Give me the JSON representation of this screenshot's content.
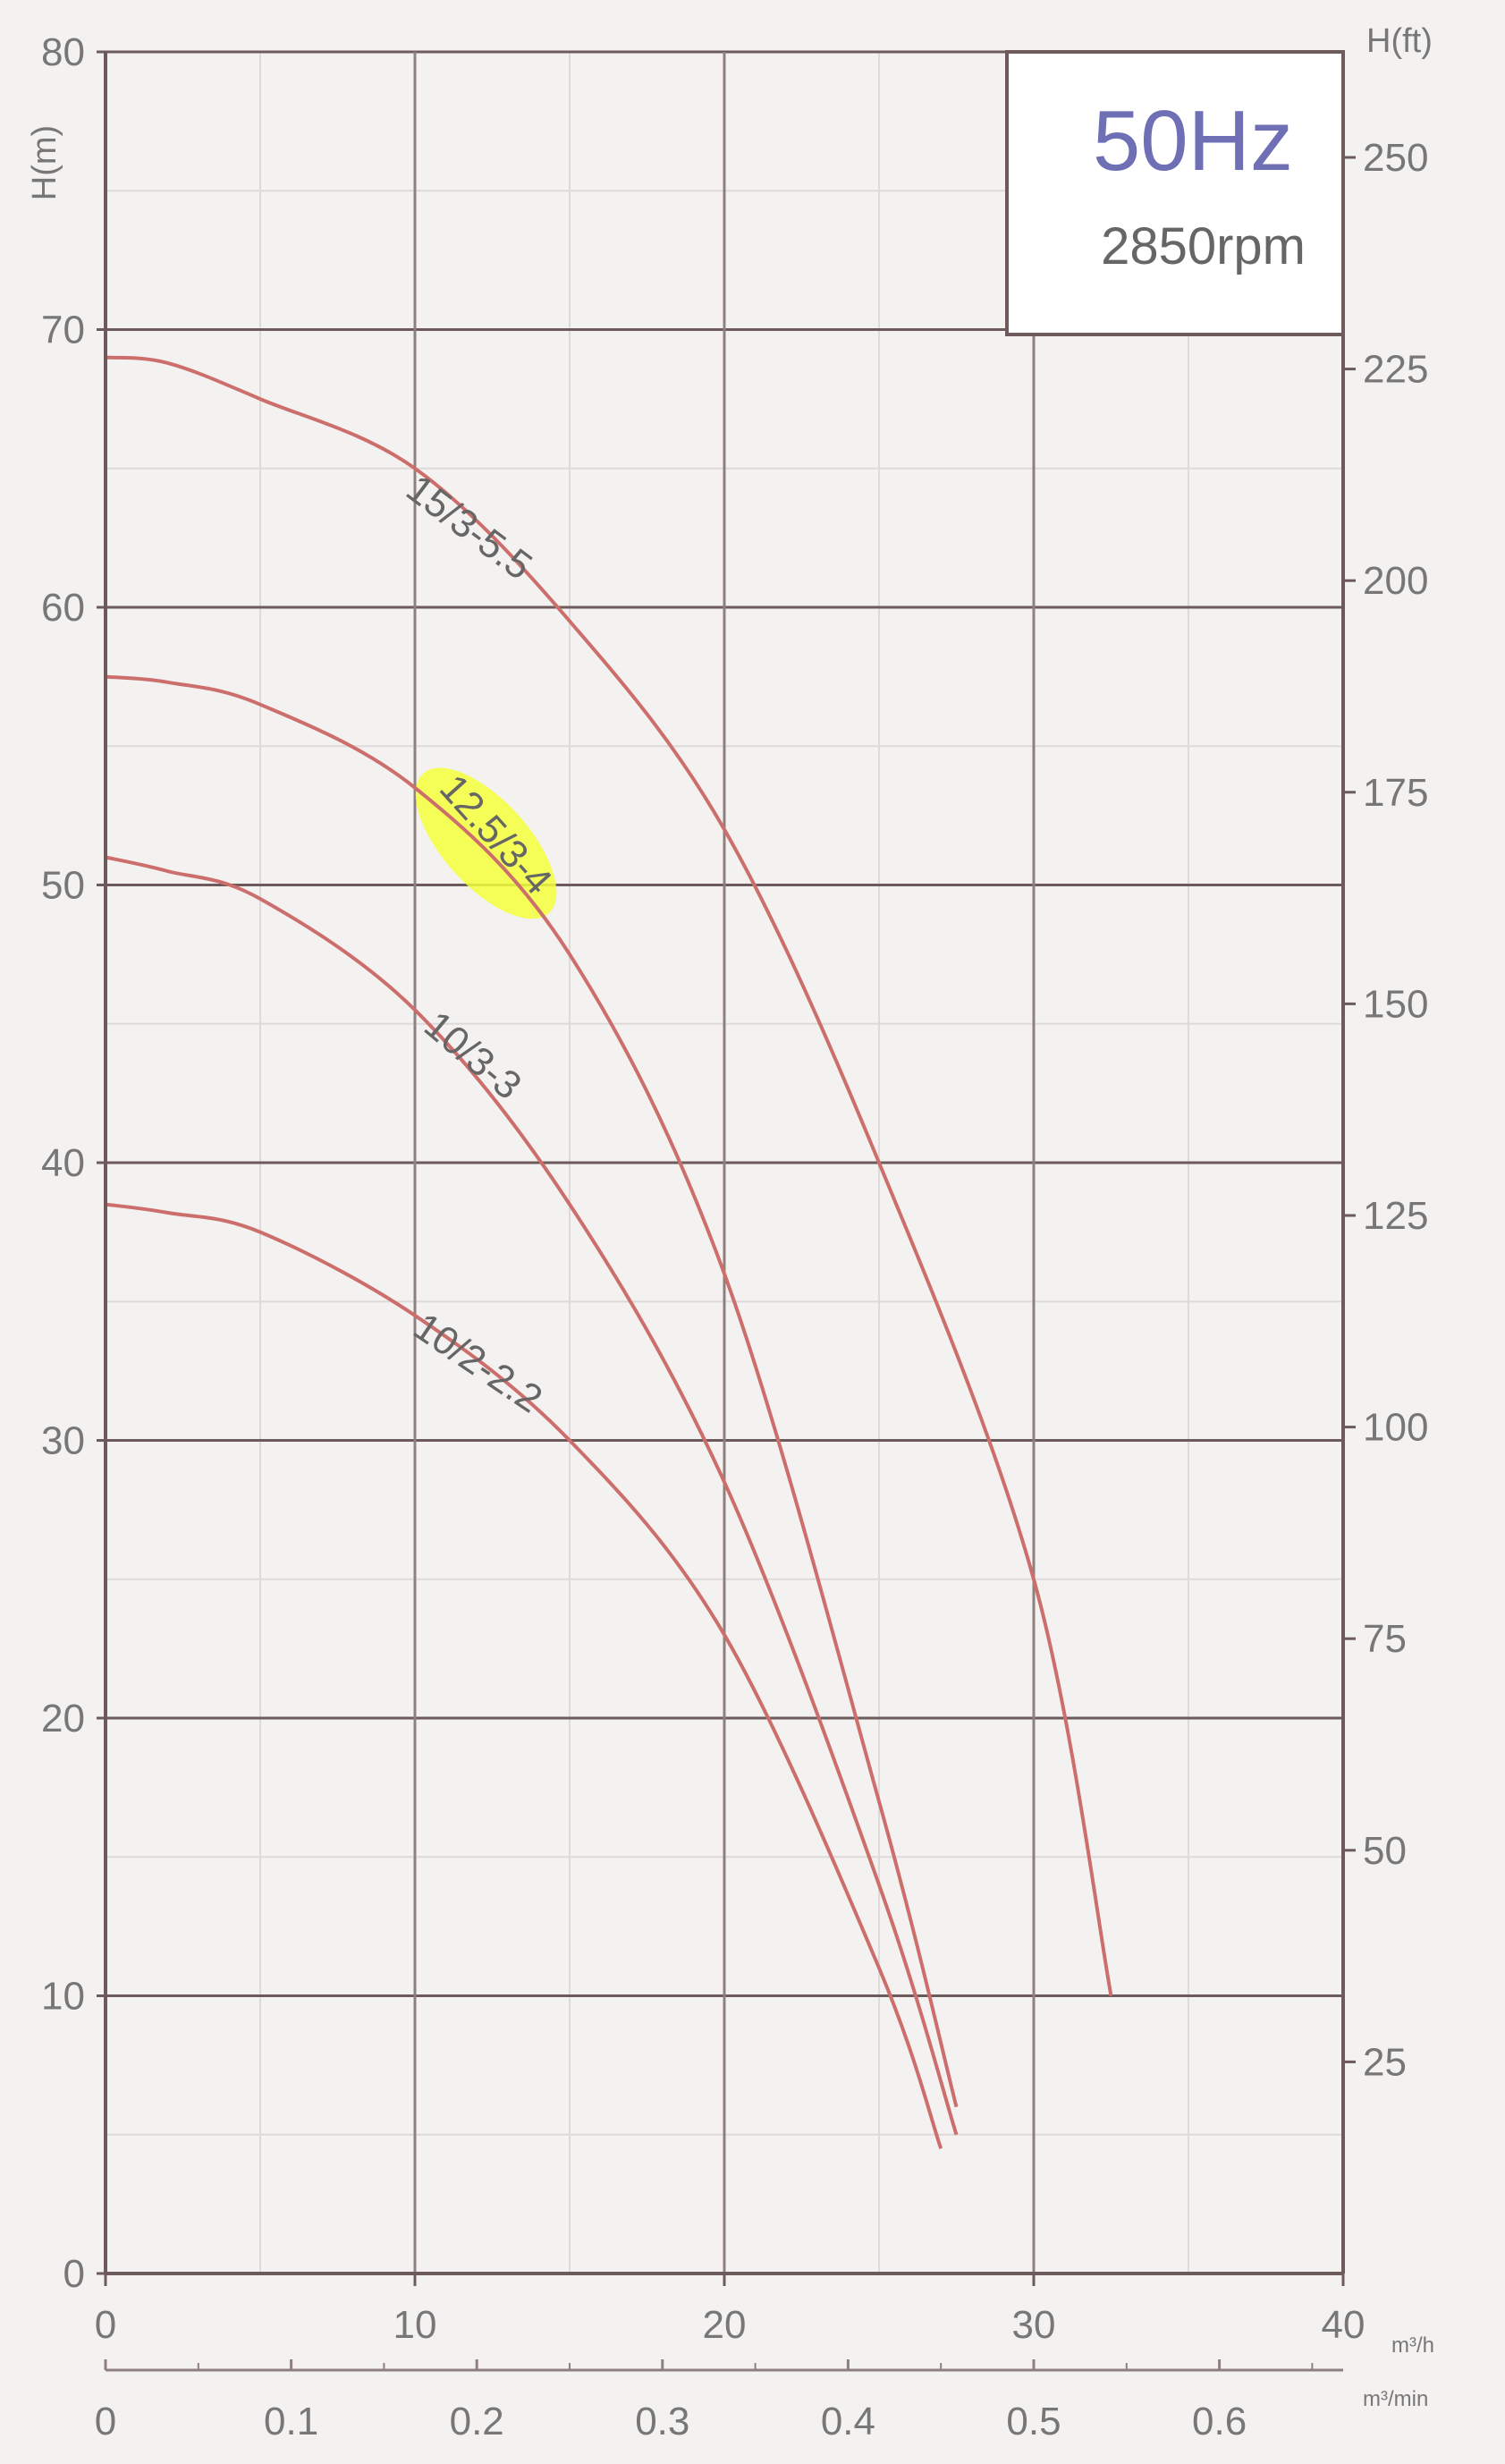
{
  "chart_data": {
    "type": "line",
    "title": "",
    "info_box": {
      "frequency": "50Hz",
      "speed": "2850rpm"
    },
    "y_left": {
      "label": "H(m)",
      "range": [
        0,
        80
      ],
      "ticks": [
        "0",
        "10",
        "20",
        "30",
        "40",
        "50",
        "60",
        "70",
        "80"
      ]
    },
    "y_right": {
      "label": "H(ft)",
      "ticks": [
        "25",
        "50",
        "75",
        "100",
        "125",
        "150",
        "175",
        "200",
        "225",
        "250"
      ]
    },
    "x_primary": {
      "unit": "m³/h",
      "range": [
        0,
        40
      ],
      "ticks": [
        "0",
        "10",
        "20",
        "30",
        "40"
      ]
    },
    "x_secondary": {
      "unit": "m³/min",
      "ticks": [
        "0",
        "0.1",
        "0.2",
        "0.3",
        "0.4",
        "0.5",
        "0.6"
      ]
    },
    "grid": true,
    "highlighted_series": "12.5/3-4",
    "series": [
      {
        "name": "15/3-5.5",
        "x": [
          0,
          2,
          5,
          10,
          15,
          20,
          25,
          30,
          32.5
        ],
        "y": [
          69,
          68.8,
          67.5,
          65,
          59.5,
          52,
          40,
          25,
          10
        ],
        "color": "#cc6f6c"
      },
      {
        "name": "12.5/3-4",
        "x": [
          0,
          2,
          5,
          10,
          15,
          20,
          25,
          27.5
        ],
        "y": [
          57.5,
          57.3,
          56.5,
          53.5,
          47.5,
          36,
          17,
          6
        ],
        "color": "#cc6f6c"
      },
      {
        "name": "10/3-3",
        "x": [
          0,
          2,
          5,
          10,
          15,
          20,
          25,
          27.5
        ],
        "y": [
          51,
          50.5,
          49.5,
          45.5,
          38.5,
          28.5,
          14,
          5
        ],
        "color": "#cc6f6c"
      },
      {
        "name": "10/2-2.2",
        "x": [
          0,
          2,
          5,
          10,
          15,
          20,
          25,
          27
        ],
        "y": [
          38.5,
          38.2,
          37.5,
          34.5,
          30,
          23,
          11,
          4.5
        ],
        "color": "#cc6f6c"
      }
    ]
  }
}
